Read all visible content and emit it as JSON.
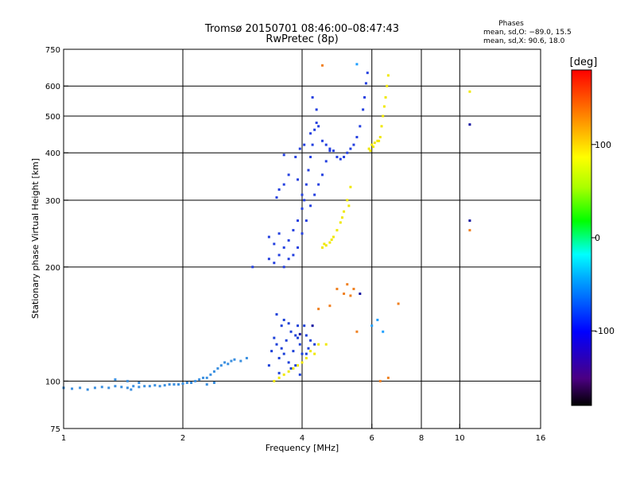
{
  "chart_data": {
    "type": "scatter",
    "title": "Tromsø 20150701 08:46:00–08:47:43",
    "subtitle": "RwPretec (8p)",
    "xlabel": "Frequency [MHz]",
    "ylabel": "Stationary phase Virtual Height [km]",
    "xscale": "log",
    "yscale": "log",
    "xlim": [
      1,
      16
    ],
    "ylim": [
      75,
      750
    ],
    "x_ticks": [
      1,
      2,
      4,
      6,
      8,
      10,
      16
    ],
    "y_ticks": [
      75,
      100,
      200,
      300,
      400,
      500,
      600,
      750
    ],
    "grid": true,
    "colorbar": {
      "label": "[deg]",
      "range": [
        -180,
        180
      ],
      "ticks": [
        100,
        0,
        -100
      ],
      "colors": [
        "#000000",
        "#4b0082",
        "#0000ff",
        "#00aaff",
        "#00ffff",
        "#00ff00",
        "#aaff00",
        "#ffff00",
        "#ff8800",
        "#ff0000"
      ]
    },
    "phase_stats": {
      "heading": "Phases",
      "line_o": "mean, sd,O: −89.0, 15.5",
      "line_x": "mean, sd,X: 90.6, 18.0"
    },
    "series": [
      {
        "name": "",
        "color": "#3a8fe0",
        "phase": -110,
        "points": [
          [
            1.0,
            96
          ],
          [
            1.05,
            95.5
          ],
          [
            1.1,
            96
          ],
          [
            1.15,
            95
          ],
          [
            1.2,
            96
          ],
          [
            1.25,
            96.5
          ],
          [
            1.3,
            96
          ],
          [
            1.35,
            97
          ],
          [
            1.4,
            96.5
          ],
          [
            1.45,
            96
          ],
          [
            1.5,
            97
          ],
          [
            1.55,
            96.5
          ],
          [
            1.6,
            97
          ],
          [
            1.65,
            97
          ],
          [
            1.7,
            97.5
          ],
          [
            1.75,
            97
          ],
          [
            1.8,
            97.5
          ],
          [
            1.85,
            98
          ],
          [
            1.9,
            98
          ],
          [
            1.95,
            98
          ],
          [
            2.0,
            98.5
          ],
          [
            2.05,
            99
          ],
          [
            2.1,
            99
          ],
          [
            2.15,
            100
          ],
          [
            2.2,
            101
          ],
          [
            2.25,
            102
          ],
          [
            2.3,
            102
          ],
          [
            2.35,
            104
          ],
          [
            2.4,
            106
          ],
          [
            2.45,
            108
          ],
          [
            2.5,
            110
          ],
          [
            2.55,
            112
          ],
          [
            2.6,
            111
          ],
          [
            2.65,
            113
          ],
          [
            2.7,
            114
          ],
          [
            2.8,
            113
          ],
          [
            2.9,
            115
          ],
          [
            2.3,
            98
          ],
          [
            2.4,
            99
          ],
          [
            1.35,
            101
          ],
          [
            1.45,
            100
          ],
          [
            1.55,
            99
          ],
          [
            1.48,
            95
          ]
        ]
      },
      {
        "name": "",
        "color": "#1a3fd8",
        "phase": -100,
        "points": [
          [
            3.3,
            110
          ],
          [
            3.35,
            120
          ],
          [
            3.4,
            130
          ],
          [
            3.45,
            125
          ],
          [
            3.5,
            115
          ],
          [
            3.55,
            140
          ],
          [
            3.6,
            118
          ],
          [
            3.65,
            128
          ],
          [
            3.7,
            112
          ],
          [
            3.75,
            135
          ],
          [
            3.8,
            120
          ],
          [
            3.85,
            110
          ],
          [
            3.9,
            130
          ],
          [
            3.95,
            125
          ],
          [
            4.0,
            118
          ],
          [
            4.05,
            140
          ],
          [
            4.1,
            132
          ],
          [
            4.15,
            122
          ],
          [
            4.2,
            128
          ],
          [
            4.3,
            125
          ],
          [
            3.45,
            150
          ],
          [
            3.6,
            145
          ],
          [
            3.75,
            108
          ],
          [
            3.9,
            140
          ],
          [
            3.5,
            105
          ],
          [
            3.7,
            142
          ],
          [
            3.85,
            132
          ],
          [
            3.55,
            122
          ],
          [
            3.95,
            104
          ],
          [
            4.1,
            118
          ]
        ]
      },
      {
        "name": "",
        "color": "#2440e0",
        "phase": -95,
        "points": [
          [
            3.0,
            200
          ],
          [
            3.3,
            210
          ],
          [
            3.4,
            205
          ],
          [
            3.5,
            215
          ],
          [
            3.6,
            225
          ],
          [
            3.7,
            235
          ],
          [
            3.8,
            250
          ],
          [
            3.9,
            265
          ],
          [
            4.0,
            285
          ],
          [
            4.05,
            300
          ],
          [
            4.1,
            330
          ],
          [
            4.15,
            360
          ],
          [
            4.2,
            390
          ],
          [
            4.25,
            420
          ],
          [
            4.3,
            460
          ],
          [
            4.35,
            520
          ],
          [
            4.4,
            470
          ],
          [
            4.5,
            430
          ],
          [
            4.6,
            420
          ],
          [
            4.7,
            410
          ],
          [
            4.8,
            405
          ],
          [
            4.9,
            390
          ],
          [
            5.0,
            385
          ],
          [
            5.1,
            390
          ],
          [
            5.2,
            400
          ],
          [
            5.3,
            410
          ],
          [
            5.4,
            420
          ],
          [
            5.5,
            440
          ],
          [
            5.6,
            470
          ],
          [
            5.7,
            520
          ],
          [
            5.75,
            560
          ],
          [
            5.8,
            610
          ],
          [
            5.85,
            650
          ],
          [
            3.6,
            200
          ],
          [
            3.7,
            210
          ],
          [
            3.8,
            215
          ],
          [
            3.9,
            225
          ],
          [
            4.0,
            245
          ],
          [
            4.1,
            265
          ],
          [
            4.2,
            290
          ],
          [
            4.3,
            310
          ],
          [
            4.4,
            330
          ],
          [
            4.5,
            350
          ],
          [
            4.6,
            380
          ],
          [
            4.7,
            405
          ],
          [
            4.0,
            310
          ],
          [
            3.9,
            340
          ],
          [
            3.6,
            330
          ],
          [
            3.5,
            320
          ],
          [
            3.45,
            305
          ],
          [
            3.3,
            240
          ],
          [
            3.4,
            230
          ],
          [
            3.5,
            245
          ],
          [
            4.25,
            560
          ],
          [
            4.35,
            480
          ],
          [
            3.85,
            390
          ],
          [
            3.95,
            410
          ],
          [
            4.05,
            420
          ],
          [
            3.7,
            350
          ],
          [
            3.6,
            395
          ],
          [
            4.2,
            450
          ]
        ]
      },
      {
        "name": "",
        "color": "#f0e800",
        "phase": 110,
        "points": [
          [
            4.5,
            225
          ],
          [
            4.6,
            228
          ],
          [
            4.7,
            232
          ],
          [
            4.8,
            240
          ],
          [
            4.9,
            250
          ],
          [
            5.0,
            262
          ],
          [
            5.1,
            280
          ],
          [
            5.2,
            300
          ],
          [
            5.3,
            325
          ],
          [
            4.55,
            230
          ],
          [
            4.75,
            236
          ],
          [
            5.05,
            270
          ],
          [
            5.25,
            290
          ],
          [
            5.9,
            410
          ],
          [
            6.0,
            420
          ],
          [
            6.1,
            425
          ],
          [
            6.2,
            430
          ],
          [
            6.3,
            440
          ],
          [
            6.35,
            470
          ],
          [
            6.4,
            500
          ],
          [
            6.45,
            530
          ],
          [
            6.5,
            560
          ],
          [
            6.55,
            600
          ],
          [
            6.6,
            640
          ],
          [
            6.25,
            430
          ],
          [
            6.05,
            415
          ],
          [
            5.95,
            405
          ],
          [
            3.4,
            100
          ],
          [
            3.5,
            102
          ],
          [
            3.6,
            104
          ],
          [
            3.7,
            106
          ],
          [
            3.9,
            110
          ],
          [
            4.0,
            112
          ],
          [
            4.1,
            115
          ],
          [
            4.2,
            120
          ],
          [
            4.4,
            125
          ],
          [
            4.6,
            125
          ],
          [
            4.3,
            118
          ],
          [
            3.8,
            108
          ],
          [
            10.6,
            580
          ]
        ]
      },
      {
        "name": "",
        "color": "#f08020",
        "phase": 150,
        "points": [
          [
            4.5,
            680
          ],
          [
            4.9,
            175
          ],
          [
            5.1,
            170
          ],
          [
            5.3,
            168
          ],
          [
            5.2,
            180
          ],
          [
            5.4,
            175
          ],
          [
            4.4,
            155
          ],
          [
            4.7,
            158
          ],
          [
            5.5,
            135
          ],
          [
            6.3,
            100
          ],
          [
            6.6,
            102
          ],
          [
            10.6,
            250
          ],
          [
            7.0,
            160
          ]
        ]
      },
      {
        "name": "",
        "color": "#1010a0",
        "phase": -150,
        "points": [
          [
            5.6,
            170
          ],
          [
            10.6,
            475
          ],
          [
            10.6,
            265
          ],
          [
            4.25,
            140
          ],
          [
            3.95,
            133
          ]
        ]
      },
      {
        "name": "",
        "color": "#20a0ff",
        "phase": -60,
        "points": [
          [
            5.5,
            685
          ],
          [
            6.0,
            140
          ],
          [
            6.2,
            145
          ],
          [
            6.4,
            135
          ]
        ]
      }
    ]
  }
}
